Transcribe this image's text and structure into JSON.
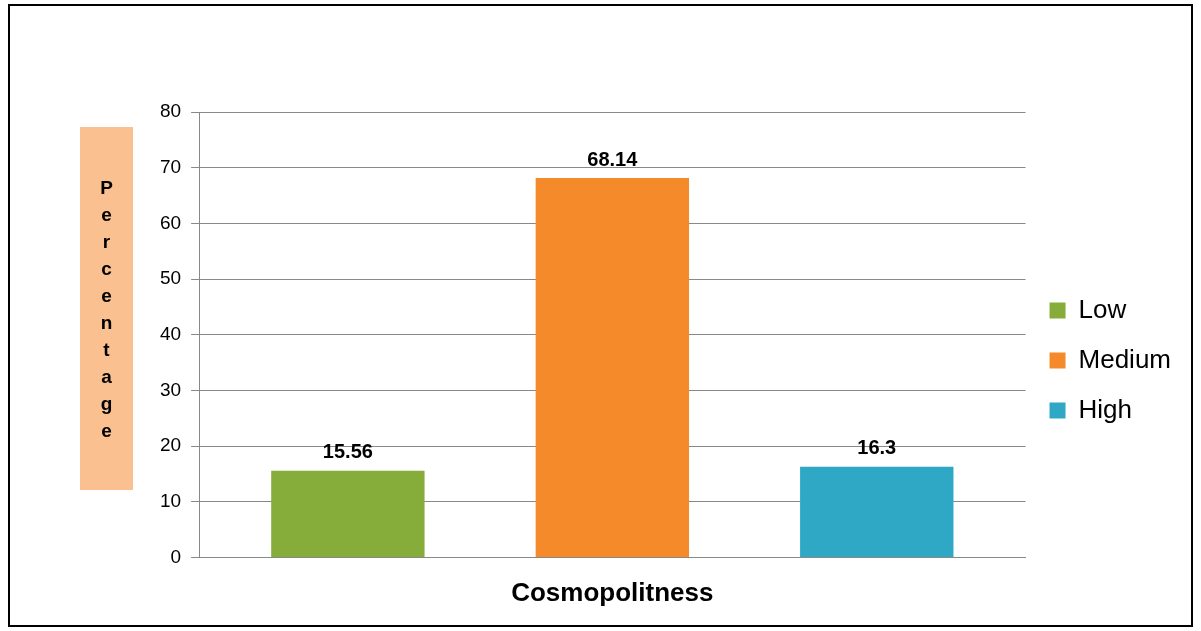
{
  "chart_data": {
    "type": "bar",
    "xlabel": "Cosmopolitness",
    "ylabel": "Percentage",
    "categories": [
      null
    ],
    "series": [
      {
        "name": "Low",
        "color": "#86ad3a",
        "values": [
          15.56
        ]
      },
      {
        "name": "Medium",
        "color": "#f58a2a",
        "values": [
          68.14
        ]
      },
      {
        "name": "High",
        "color": "#2fa8c6",
        "values": [
          16.3
        ]
      }
    ],
    "ylim": [
      0,
      80
    ],
    "yticks": [
      0,
      10,
      20,
      30,
      40,
      50,
      60,
      70,
      80
    ],
    "grid": "y",
    "legend": "right",
    "data_labels": true
  }
}
